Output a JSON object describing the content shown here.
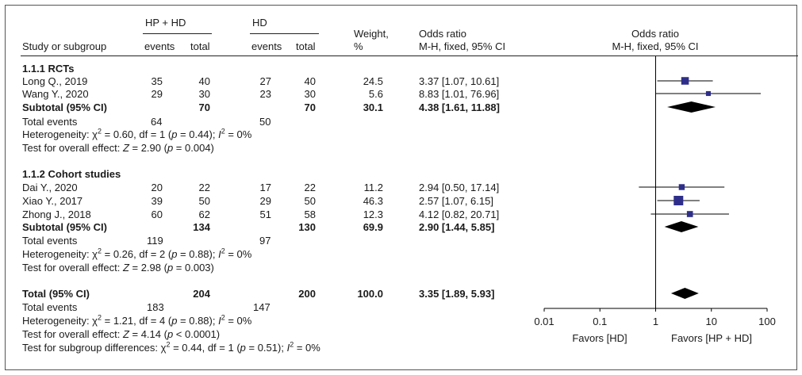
{
  "header": {
    "group1": "HP + HD",
    "group2": "HD",
    "col_study": "Study or subgroup",
    "col_events1": "events",
    "col_total1": "total",
    "col_events2": "events",
    "col_total2": "total",
    "col_weight": "Weight,",
    "col_weight_unit": "%",
    "col_or": "Odds ratio",
    "col_or_method": "M-H, fixed, 95% CI",
    "plot_title": "Odds ratio",
    "plot_method": "M-H, fixed, 95% CI"
  },
  "subgroup1": {
    "title": "1.1.1 RCTs",
    "studies": [
      {
        "name": "Long Q., 2019",
        "e1": "35",
        "t1": "40",
        "e2": "27",
        "t2": "40",
        "weight": "24.5",
        "ci": "3.37 [1.07, 10.61]"
      },
      {
        "name": "Wang Y., 2020",
        "e1": "29",
        "t1": "30",
        "e2": "23",
        "t2": "30",
        "weight": "5.6",
        "ci": "8.83 [1.01, 76.96]"
      }
    ],
    "subtotal": {
      "label": "Subtotal (95% CI)",
      "t1": "70",
      "t2": "70",
      "weight": "30.1",
      "ci": "4.38 [1.61, 11.88]"
    },
    "total_events": {
      "label": "Total events",
      "e1": "64",
      "e2": "50"
    },
    "heterogeneity": {
      "prefix": "Heterogeneity: χ",
      "sq": "2",
      "mid": " = 0.60, df = 1 (",
      "p": "p",
      "pval": " = 0.44); ",
      "i": "I",
      "isq": "2",
      "end": " = 0%"
    },
    "overall": {
      "prefix": "Test for overall effect: ",
      "z": "Z",
      "mid": " = 2.90 (",
      "p": "p",
      "end": " = 0.004)"
    }
  },
  "subgroup2": {
    "title": "1.1.2 Cohort studies",
    "studies": [
      {
        "name": "Dai Y., 2020",
        "e1": "20",
        "t1": "22",
        "e2": "17",
        "t2": "22",
        "weight": "11.2",
        "ci": "2.94 [0.50, 17.14]"
      },
      {
        "name": "Xiao Y., 2017",
        "e1": "39",
        "t1": "50",
        "e2": "29",
        "t2": "50",
        "weight": "46.3",
        "ci": "2.57 [1.07, 6.15]"
      },
      {
        "name": "Zhong J., 2018",
        "e1": "60",
        "t1": "62",
        "e2": "51",
        "t2": "58",
        "weight": "12.3",
        "ci": "4.12 [0.82, 20.71]"
      }
    ],
    "subtotal": {
      "label": "Subtotal (95% CI)",
      "t1": "134",
      "t2": "130",
      "weight": "69.9",
      "ci": "2.90 [1.44, 5.85]"
    },
    "total_events": {
      "label": "Total events",
      "e1": "119",
      "e2": "97"
    },
    "heterogeneity": {
      "prefix": "Heterogeneity: χ",
      "sq": "2",
      "mid": " = 0.26, df = 2 (",
      "p": "p",
      "pval": " = 0.88); ",
      "i": "I",
      "isq": "2",
      "end": " = 0%"
    },
    "overall": {
      "prefix": "Test for overall effect: ",
      "z": "Z",
      "mid": " = 2.98 (",
      "p": "p",
      "end": " = 0.003)"
    }
  },
  "total": {
    "label": "Total (95% CI)",
    "t1": "204",
    "t2": "200",
    "weight": "100.0",
    "ci": "3.35 [1.89, 5.93]",
    "total_events": {
      "label": "Total events",
      "e1": "183",
      "e2": "147"
    },
    "heterogeneity": {
      "prefix": "Heterogeneity: χ",
      "sq": "2",
      "mid": " = 1.21, df = 4 (",
      "p": "p",
      "pval": " = 0.88); ",
      "i": "I",
      "isq": "2",
      "end": " = 0%"
    },
    "overall": {
      "prefix": "Test for overall effect: ",
      "z": "Z",
      "mid": " = 4.14 (",
      "p": "p",
      "end": " < 0.0001)"
    },
    "subgroup_diff": {
      "prefix": "Test for subgroup differences: χ",
      "sq": "2",
      "mid": " = 0.44, df = 1 (",
      "p": "p",
      "pval": " = 0.51); ",
      "i": "I",
      "isq": "2",
      "end": " = 0%"
    }
  },
  "axis": {
    "favors_left": "Favors [HD]",
    "favors_right": "Favors [HP + HD]"
  },
  "colors": {
    "square": "#2e2e8a",
    "diamond": "#000000",
    "line": "#000000"
  },
  "chart_data": {
    "type": "forest",
    "scale": "log",
    "xlim": [
      0.01,
      100
    ],
    "ticks": [
      0.01,
      0.1,
      1,
      10,
      100
    ],
    "tick_labels": [
      "0.01",
      "0.1",
      "1",
      "10",
      "100"
    ],
    "studies": [
      {
        "name": "Long Q., 2019",
        "or": 3.37,
        "lo": 1.07,
        "hi": 10.61,
        "weight": 24.5
      },
      {
        "name": "Wang Y., 2020",
        "or": 8.83,
        "lo": 1.01,
        "hi": 76.96,
        "weight": 5.6
      },
      {
        "name": "Dai Y., 2020",
        "or": 2.94,
        "lo": 0.5,
        "hi": 17.14,
        "weight": 11.2
      },
      {
        "name": "Xiao Y., 2017",
        "or": 2.57,
        "lo": 1.07,
        "hi": 6.15,
        "weight": 46.3
      },
      {
        "name": "Zhong J., 2018",
        "or": 4.12,
        "lo": 0.82,
        "hi": 20.71,
        "weight": 12.3
      }
    ],
    "pooled": [
      {
        "name": "Subtotal (95% CI)",
        "or": 4.38,
        "lo": 1.61,
        "hi": 11.88
      },
      {
        "name": "Subtotal (95% CI)",
        "or": 2.9,
        "lo": 1.44,
        "hi": 5.85
      },
      {
        "name": "Total (95% CI)",
        "or": 3.35,
        "lo": 1.89,
        "hi": 5.93
      }
    ]
  }
}
